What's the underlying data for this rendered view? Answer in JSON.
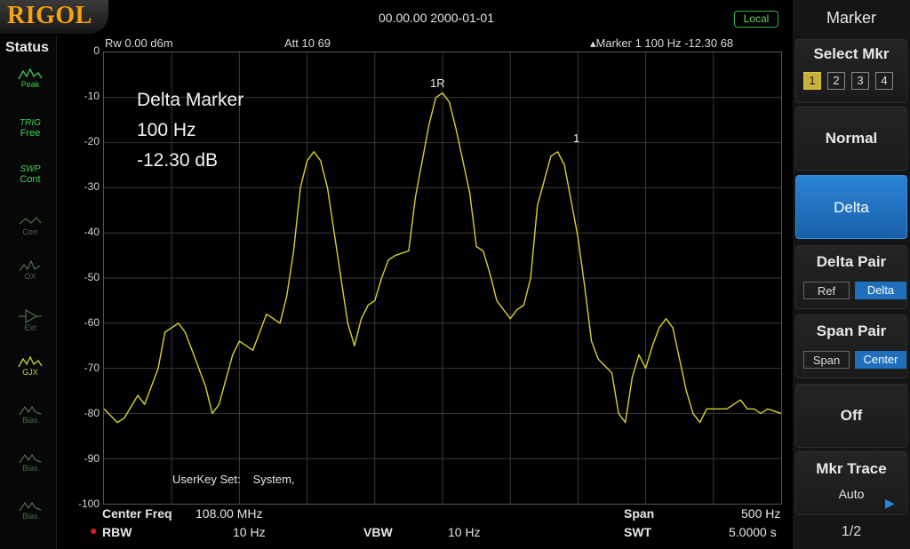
{
  "brand": "RIGOL",
  "datetime": "00.00.00 2000-01-01",
  "local_badge": "Local",
  "status": {
    "title": "Status",
    "items": [
      {
        "icon": "peak-wave-icon",
        "label": "Peak",
        "state": "active"
      },
      {
        "icon": "trig-icon",
        "label": "Free",
        "state": "active",
        "top_label": "TRIG"
      },
      {
        "icon": "swp-icon",
        "label": "Cont",
        "state": "active",
        "top_label": "SWP"
      },
      {
        "icon": "corr-icon",
        "label": "Corr",
        "state": "dim"
      },
      {
        "icon": "ox-icon",
        "label": "OX",
        "state": "dim"
      },
      {
        "icon": "ext-trigger-icon",
        "label": "Ext",
        "state": "dim"
      },
      {
        "icon": "gjx-wave-icon",
        "label": "GJX",
        "state": "yellow"
      },
      {
        "icon": "bias-wave-icon",
        "label": "Bias",
        "state": "dim"
      },
      {
        "icon": "bias-wave-icon",
        "label": "Bias",
        "state": "dim"
      },
      {
        "icon": "bias-wave-icon",
        "label": "Bias",
        "state": "dim"
      }
    ]
  },
  "header": {
    "ref_level": "Rw  0.00 d6m",
    "attenuation": "Att    10 69",
    "marker_readout": "▴Marker 1   100 Hz   -12.30 68"
  },
  "delta_info": {
    "line1": "Delta Marker",
    "line2": "100 Hz",
    "line3": "-12.30 dB"
  },
  "marker_labels": {
    "m1_ref": "1R",
    "m1": "1"
  },
  "userkey": {
    "label": "UserKey Set:",
    "value": "System,"
  },
  "y_axis_labels": [
    "0",
    "-10",
    "-20",
    "-30",
    "-40",
    "-50",
    "-60",
    "-70",
    "-80",
    "-90",
    "-100"
  ],
  "bottom": {
    "center_freq_label": "Center Freq",
    "center_freq_value": "108.00 MHz",
    "span_label": "Span",
    "span_value": "500 Hz",
    "rbw_label": "RBW",
    "rbw_value": "10 Hz",
    "vbw_label": "VBW",
    "vbw_value": "10 Hz",
    "swt_label": "SWT",
    "swt_value": "5.0000 s"
  },
  "menu": {
    "title": "Marker",
    "select_mkr": {
      "label": "Select Mkr",
      "options": [
        "1",
        "2",
        "3",
        "4"
      ],
      "selected": "1"
    },
    "normal": "Normal",
    "delta": "Delta",
    "delta_pair": {
      "label": "Delta Pair",
      "ref": "Ref",
      "delta": "Delta"
    },
    "span_pair": {
      "label": "Span Pair",
      "span": "Span",
      "center": "Center"
    },
    "off": "Off",
    "mkr_trace": {
      "label": "Mkr Trace",
      "value": "Auto"
    },
    "page": "1/2"
  },
  "colors": {
    "trace": "#d8d22a",
    "brand": "#f5a20c",
    "active_button": "#2a85d6",
    "status_green": "#3fcf55"
  },
  "trace_points": [
    [
      0,
      -79
    ],
    [
      2,
      -82
    ],
    [
      3,
      -81
    ],
    [
      5,
      -76
    ],
    [
      6,
      -78
    ],
    [
      8,
      -70
    ],
    [
      9,
      -62
    ],
    [
      11,
      -60
    ],
    [
      12,
      -62
    ],
    [
      13,
      -66
    ],
    [
      15,
      -74
    ],
    [
      16,
      -80
    ],
    [
      17,
      -78
    ],
    [
      19,
      -67
    ],
    [
      20,
      -64
    ],
    [
      22,
      -66
    ],
    [
      24,
      -58
    ],
    [
      26,
      -60
    ],
    [
      27,
      -54
    ],
    [
      28,
      -44
    ],
    [
      29,
      -30
    ],
    [
      30,
      -24
    ],
    [
      31,
      -22
    ],
    [
      32,
      -24
    ],
    [
      33,
      -30
    ],
    [
      35,
      -50
    ],
    [
      36,
      -60
    ],
    [
      37,
      -65
    ],
    [
      38,
      -59
    ],
    [
      39,
      -56
    ],
    [
      40,
      -55
    ],
    [
      41,
      -50
    ],
    [
      42,
      -46
    ],
    [
      43,
      -45
    ],
    [
      45,
      -44
    ],
    [
      46,
      -32
    ],
    [
      48,
      -16
    ],
    [
      49,
      -10
    ],
    [
      50,
      -9
    ],
    [
      51,
      -11
    ],
    [
      52,
      -17
    ],
    [
      54,
      -31
    ],
    [
      55,
      -43
    ],
    [
      56,
      -44
    ],
    [
      57,
      -49
    ],
    [
      58,
      -55
    ],
    [
      60,
      -59
    ],
    [
      61,
      -57
    ],
    [
      62,
      -56
    ],
    [
      63,
      -50
    ],
    [
      64,
      -34
    ],
    [
      66,
      -23
    ],
    [
      67,
      -22
    ],
    [
      68,
      -25
    ],
    [
      70,
      -41
    ],
    [
      71,
      -52
    ],
    [
      72,
      -64
    ],
    [
      73,
      -68
    ],
    [
      75,
      -71
    ],
    [
      76,
      -80
    ],
    [
      77,
      -82
    ],
    [
      78,
      -72
    ],
    [
      79,
      -67
    ],
    [
      80,
      -70
    ],
    [
      81,
      -65
    ],
    [
      82,
      -61
    ],
    [
      83,
      -59
    ],
    [
      84,
      -61
    ],
    [
      85,
      -68
    ],
    [
      86,
      -75
    ],
    [
      87,
      -80
    ],
    [
      88,
      -82
    ],
    [
      89,
      -79
    ],
    [
      90,
      -79
    ],
    [
      92,
      -79
    ],
    [
      93,
      -78
    ],
    [
      94,
      -77
    ],
    [
      95,
      -79
    ],
    [
      96,
      -79
    ],
    [
      97,
      -80
    ],
    [
      98,
      -79
    ],
    [
      100,
      -80
    ]
  ]
}
